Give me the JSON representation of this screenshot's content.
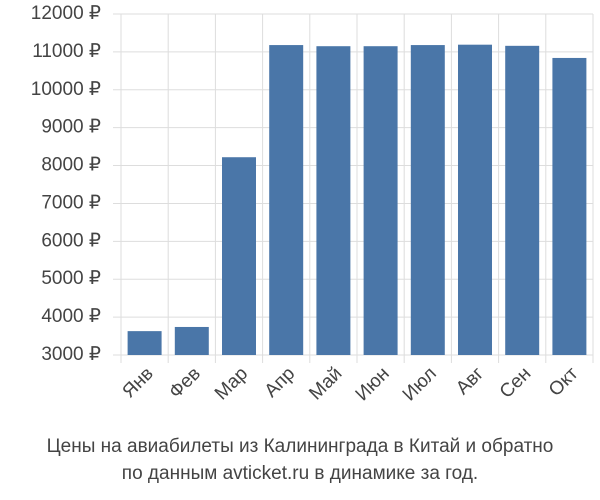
{
  "chart_data": {
    "type": "bar",
    "title": "Цены на авиабилеты из Калининграда в Китай и обратно",
    "subtitle": "по данным avticket.ru в динамике за год.",
    "categories": [
      "Янв",
      "Фев",
      "Мар",
      "Апр",
      "Май",
      "Июн",
      "Июл",
      "Авг",
      "Сен",
      "Окт"
    ],
    "values": [
      3630,
      3740,
      8220,
      11180,
      11150,
      11150,
      11180,
      11190,
      11160,
      10840
    ],
    "color": "#4a76a8",
    "ylim": [
      3000,
      12000
    ],
    "yticks": [
      {
        "value": 3000,
        "label": "3000 ₽"
      },
      {
        "value": 4000,
        "label": "4000 ₽"
      },
      {
        "value": 5000,
        "label": "5000 ₽"
      },
      {
        "value": 6000,
        "label": "6000 ₽"
      },
      {
        "value": 7000,
        "label": "7000 ₽"
      },
      {
        "value": 8000,
        "label": "8000 ₽"
      },
      {
        "value": 9000,
        "label": "9000 ₽"
      },
      {
        "value": 10000,
        "label": "10000 ₽"
      },
      {
        "value": 11000,
        "label": "11000 ₽"
      },
      {
        "value": 12000,
        "label": "12000 ₽"
      }
    ],
    "grid": true
  }
}
